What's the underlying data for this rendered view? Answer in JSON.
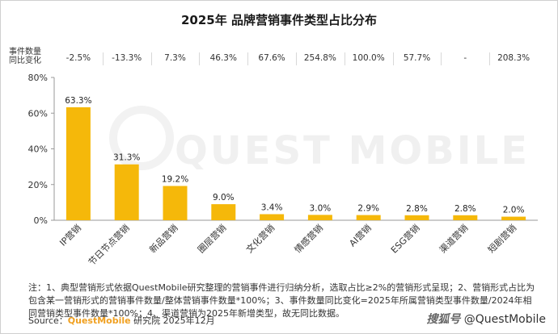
{
  "title": "2025年 品牌营销事件类型占比分布",
  "header_label_line1": "事件数量",
  "header_label_line2": "同比变化",
  "chart_data": {
    "type": "bar",
    "categories": [
      "IP营销",
      "节日节点营销",
      "新品营销",
      "圈层营销",
      "文化营销",
      "情感营销",
      "AI营销",
      "ESG营销",
      "渠道营销",
      "短剧营销"
    ],
    "values": [
      63.3,
      31.3,
      19.2,
      9.0,
      3.4,
      3.0,
      2.9,
      2.8,
      2.8,
      2.0
    ],
    "data_labels": [
      "63.3%",
      "31.3%",
      "19.2%",
      "9.0%",
      "3.4%",
      "3.0%",
      "2.9%",
      "2.8%",
      "2.8%",
      "2.0%"
    ],
    "yoy_change": [
      "-2.5%",
      "-13.3%",
      "7.3%",
      "46.3%",
      "67.6%",
      "254.8%",
      "100.0%",
      "57.7%",
      "-",
      "208.3%"
    ],
    "ylim": [
      0,
      80
    ],
    "yticks": [
      "0%",
      "20%",
      "40%",
      "60%",
      "80%"
    ],
    "bar_color": "#F5B80A",
    "grid": false,
    "xlabel": "",
    "ylabel": ""
  },
  "footnote": "注：1、典型营销形式依据QuestMobile研究整理的营销事件进行归纳分析，选取占比≥2%的营销形式呈现；2、营销形式占比为包含某一营销形式的营销事件数量/整体营销事件数量*100%；3、事件数量同比变化=2025年所属营销类型事件数量/2024年相同营销类型事件数量*100%；4、渠道营销为2025年新增类型，故无同比数据。",
  "source_prefix": "Source：",
  "source_brand": "QuestMobile",
  "source_suffix": " 研究院 2025年12月",
  "watermark": "QUEST MOBILE",
  "brand_tag_icon": "搜狐号",
  "brand_tag_text": "@QuestMobile"
}
